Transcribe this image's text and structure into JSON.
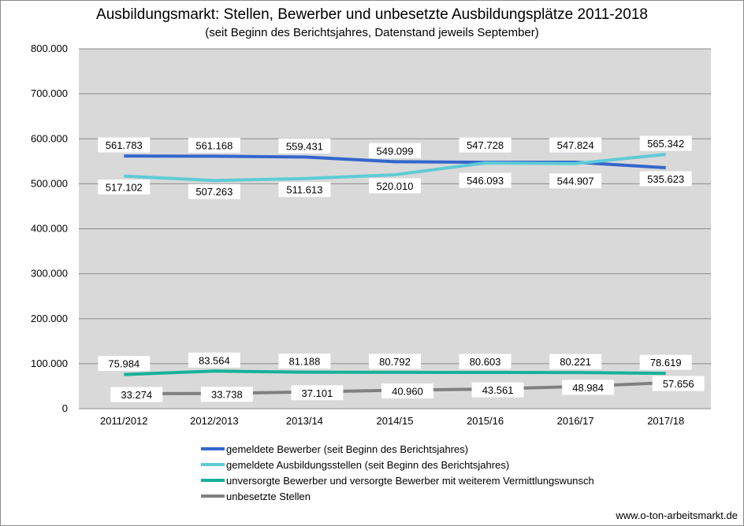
{
  "chart_data": {
    "type": "line",
    "title": "Ausbildungsmarkt: Stellen, Bewerber und unbesetzte Ausbildungsplätze 2011-2018",
    "subtitle": "(seit Beginn des Berichtsjahres, Datenstand jeweils September)",
    "categories": [
      "2011/2012",
      "2012/2013",
      "2013/14",
      "2014/15",
      "2015/16",
      "2016/17",
      "2017/18"
    ],
    "ylim": [
      0,
      800000
    ],
    "yticks": [
      0,
      100000,
      200000,
      300000,
      400000,
      500000,
      600000,
      700000,
      800000
    ],
    "ytick_labels": [
      "0",
      "100.000",
      "200.000",
      "300.000",
      "400.000",
      "500.000",
      "600.000",
      "700.000",
      "800.000"
    ],
    "grid": "horizontal",
    "legend_position": "bottom",
    "series": [
      {
        "name": "gemeldete Bewerber (seit Beginn des Berichtsjahres)",
        "color": "#3366cc",
        "values": [
          561783,
          561168,
          559431,
          549099,
          547728,
          547824,
          535623
        ],
        "labels": [
          "561.783",
          "561.168",
          "559.431",
          "549.099",
          "547.728",
          "547.824",
          "535.623"
        ]
      },
      {
        "name": "gemeldete Ausbildungsstellen (seit Beginn des Berichtsjahres)",
        "color": "#5ecbd6",
        "values": [
          517102,
          507263,
          511613,
          520010,
          546093,
          544907,
          565342
        ],
        "labels": [
          "517.102",
          "507.263",
          "511.613",
          "520.010",
          "546.093",
          "544.907",
          "565.342"
        ]
      },
      {
        "name": "unversorgte Bewerber und versorgte Bewerber mit weiterem Vermittlungswunsch",
        "color": "#17b19a",
        "values": [
          75984,
          83564,
          81188,
          80792,
          80603,
          80221,
          78619
        ],
        "labels": [
          "75.984",
          "83.564",
          "81.188",
          "80.792",
          "80.603",
          "80.221",
          "78.619"
        ]
      },
      {
        "name": "unbesetzte Stellen",
        "color": "#808080",
        "values": [
          33274,
          33738,
          37101,
          40960,
          43561,
          48984,
          57656
        ],
        "labels": [
          "33.274",
          "33.738",
          "37.101",
          "40.960",
          "43.561",
          "48.984",
          "57.656"
        ]
      }
    ]
  },
  "footer": {
    "source": "www.o-ton-arbeitsmarkt.de"
  }
}
